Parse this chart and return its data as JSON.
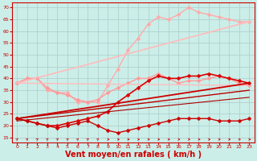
{
  "background_color": "#cceee8",
  "grid_color": "#aacccc",
  "xlabel": "Vent moyen/en rafales ( km/h )",
  "xlabel_color": "#cc0000",
  "xlabel_fontsize": 7,
  "xtick_color": "#cc0000",
  "ytick_color": "#cc0000",
  "ylim": [
    13,
    72
  ],
  "xlim": [
    -0.5,
    23.5
  ],
  "yticks": [
    15,
    20,
    25,
    30,
    35,
    40,
    45,
    50,
    55,
    60,
    65,
    70
  ],
  "xticks": [
    0,
    1,
    2,
    3,
    4,
    5,
    6,
    7,
    8,
    9,
    10,
    11,
    12,
    13,
    14,
    15,
    16,
    17,
    18,
    19,
    20,
    21,
    22,
    23
  ],
  "series": [
    {
      "x": [
        0,
        1,
        2,
        3,
        4,
        5,
        6,
        7,
        8,
        9,
        10,
        11,
        12,
        13,
        14,
        15,
        16,
        17,
        18,
        19,
        20,
        21,
        22,
        23
      ],
      "y": [
        38,
        40,
        40,
        35,
        34,
        34,
        30,
        30,
        30,
        37,
        44,
        52,
        57,
        63,
        66,
        65,
        67,
        70,
        68,
        67,
        66,
        65,
        64,
        64
      ],
      "color": "#ffaaaa",
      "lw": 1.0,
      "marker": "D",
      "markersize": 2.5
    },
    {
      "x": [
        0,
        1,
        2,
        3,
        4,
        5,
        6,
        7,
        8,
        9,
        10,
        11,
        12,
        13,
        14,
        15,
        16,
        17,
        18,
        19,
        20,
        21,
        22,
        23
      ],
      "y": [
        38,
        40,
        40,
        36,
        34,
        33,
        31,
        30,
        31,
        34,
        36,
        38,
        40,
        40,
        42,
        40,
        38,
        39,
        39,
        40,
        41,
        40,
        38,
        37
      ],
      "color": "#ff9999",
      "lw": 1.0,
      "marker": "D",
      "markersize": 2.5
    },
    {
      "x": [
        0,
        23
      ],
      "y": [
        38,
        64
      ],
      "color": "#ffbbbb",
      "lw": 1.2,
      "marker": null,
      "markersize": 0
    },
    {
      "x": [
        0,
        23
      ],
      "y": [
        38,
        37
      ],
      "color": "#ffbbbb",
      "lw": 1.0,
      "marker": null,
      "markersize": 0
    },
    {
      "x": [
        0,
        1,
        2,
        3,
        4,
        5,
        6,
        7,
        8,
        9,
        10,
        11,
        12,
        13,
        14,
        15,
        16,
        17,
        18,
        19,
        20,
        21,
        22,
        23
      ],
      "y": [
        23,
        22,
        21,
        20,
        20,
        21,
        22,
        23,
        24,
        26,
        30,
        33,
        36,
        39,
        41,
        40,
        40,
        41,
        41,
        42,
        41,
        40,
        39,
        38
      ],
      "color": "#dd0000",
      "lw": 1.2,
      "marker": "D",
      "markersize": 2.5
    },
    {
      "x": [
        0,
        1,
        2,
        3,
        4,
        5,
        6,
        7,
        8,
        9,
        10,
        11,
        12,
        13,
        14,
        15,
        16,
        17,
        18,
        19,
        20,
        21,
        22,
        23
      ],
      "y": [
        23,
        22,
        21,
        20,
        19,
        20,
        21,
        22,
        20,
        18,
        17,
        18,
        19,
        20,
        21,
        22,
        23,
        23,
        23,
        23,
        22,
        22,
        22,
        23
      ],
      "color": "#cc0000",
      "lw": 1.0,
      "marker": "D",
      "markersize": 2.5
    },
    {
      "x": [
        0,
        23
      ],
      "y": [
        23,
        38
      ],
      "color": "#cc0000",
      "lw": 1.3,
      "marker": null,
      "markersize": 0
    },
    {
      "x": [
        0,
        23
      ],
      "y": [
        23,
        35
      ],
      "color": "#bb0000",
      "lw": 1.0,
      "marker": null,
      "markersize": 0
    },
    {
      "x": [
        0,
        23
      ],
      "y": [
        22,
        32
      ],
      "color": "#aa0000",
      "lw": 0.8,
      "marker": null,
      "markersize": 0
    }
  ],
  "wind_arrows": {
    "x": [
      0,
      1,
      2,
      3,
      4,
      5,
      6,
      7,
      8,
      9,
      10,
      11,
      12,
      13,
      14,
      15,
      16,
      17,
      18,
      19,
      20,
      21,
      22,
      23
    ],
    "angles_deg": [
      45,
      45,
      45,
      45,
      45,
      45,
      45,
      45,
      45,
      0,
      0,
      0,
      0,
      0,
      0,
      0,
      0,
      0,
      0,
      0,
      0,
      0,
      0,
      0
    ],
    "y": 14.2,
    "color": "#cc0000",
    "size": 4
  }
}
